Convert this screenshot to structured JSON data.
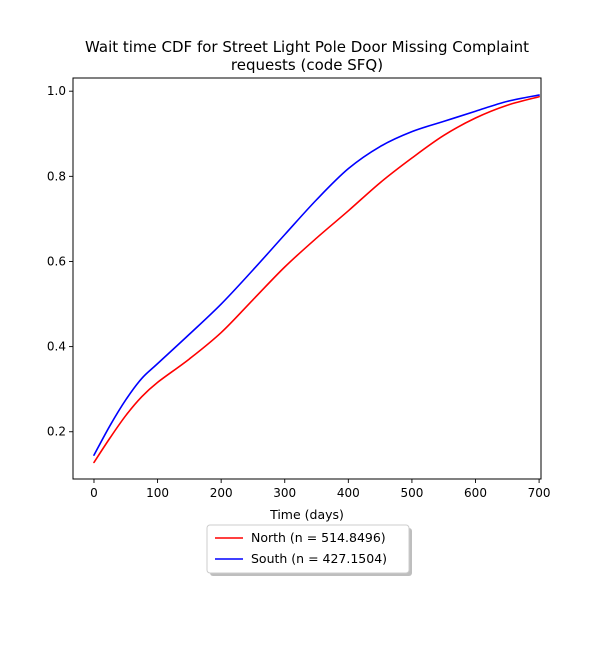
{
  "chart_data": {
    "type": "line",
    "title_lines": [
      "Wait time CDF for Street Light Pole Door Missing Complaint",
      "requests (code SFQ)"
    ],
    "xlabel": "Time (days)",
    "ylabel": "",
    "xlim": [
      -33,
      703
    ],
    "ylim": [
      0.089,
      1.031
    ],
    "x_ticks": [
      0,
      100,
      200,
      300,
      400,
      500,
      600,
      700
    ],
    "y_ticks": [
      0.2,
      0.4,
      0.6,
      0.8,
      1.0
    ],
    "y_tick_labels": [
      "0.2",
      "0.4",
      "0.6",
      "0.8",
      "1.0"
    ],
    "grid": false,
    "legend_placement": "below-center",
    "series": [
      {
        "name": "North (n = 514.8496)",
        "color": "#ff0000",
        "x": [
          0,
          25,
          50,
          75,
          100,
          150,
          200,
          250,
          300,
          350,
          400,
          450,
          500,
          550,
          600,
          650,
          700
        ],
        "y": [
          0.128,
          0.185,
          0.238,
          0.282,
          0.316,
          0.371,
          0.433,
          0.51,
          0.587,
          0.655,
          0.719,
          0.785,
          0.843,
          0.896,
          0.937,
          0.967,
          0.987
        ]
      },
      {
        "name": "South (n = 427.1504)",
        "color": "#0000ff",
        "x": [
          0,
          25,
          50,
          75,
          100,
          150,
          200,
          250,
          300,
          350,
          400,
          450,
          500,
          550,
          600,
          650,
          700
        ],
        "y": [
          0.145,
          0.214,
          0.275,
          0.325,
          0.36,
          0.429,
          0.5,
          0.58,
          0.663,
          0.745,
          0.818,
          0.87,
          0.905,
          0.929,
          0.953,
          0.976,
          0.991
        ]
      }
    ]
  }
}
